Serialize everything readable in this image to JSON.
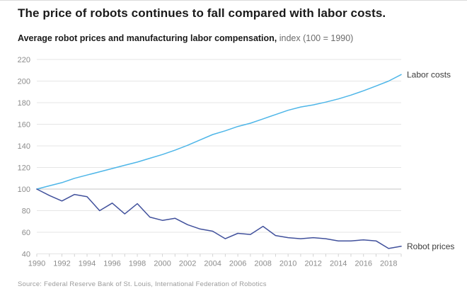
{
  "title": "The price of robots continues to fall compared with labor costs.",
  "subtitle": {
    "bold": "Average robot prices and manufacturing labor compensation,",
    "rest": " index (100 = 1990)"
  },
  "source": "Source: Federal Reserve Bank of St. Louis, International Federation of Robotics",
  "colors": {
    "labor_line": "#4eb6e8",
    "robot_line": "#41519c",
    "grid": "#e5e5e5",
    "grid_emphasis": "#c4c4c4",
    "tick": "#d2d2d2",
    "axis_text": "#8c8c8c",
    "series_label_text": "#3c3c3c",
    "title_text": "#1a1a1a",
    "source_text": "#9b9b9b"
  },
  "chart_data": {
    "type": "line",
    "title": "Average robot prices and manufacturing labor compensation, index (100 = 1990)",
    "xlabel": "",
    "ylabel": "",
    "x": [
      1990,
      1991,
      1992,
      1993,
      1994,
      1995,
      1996,
      1997,
      1998,
      1999,
      2000,
      2001,
      2002,
      2003,
      2004,
      2005,
      2006,
      2007,
      2008,
      2009,
      2010,
      2011,
      2012,
      2013,
      2014,
      2015,
      2016,
      2017,
      2018,
      2019
    ],
    "series": [
      {
        "name": "Labor costs",
        "color": "#4eb6e8",
        "values": [
          100,
          103,
          106,
          110,
          113,
          116,
          119,
          122,
          125,
          128.5,
          132,
          136,
          140.5,
          145.5,
          150.5,
          154,
          158,
          161,
          165,
          169,
          173,
          176,
          178,
          180.5,
          183.5,
          187,
          191,
          195.5,
          200,
          206
        ]
      },
      {
        "name": "Robot prices",
        "color": "#41519c",
        "values": [
          100,
          94,
          89,
          95,
          93,
          80,
          87,
          77,
          86.5,
          74,
          71,
          73,
          67,
          63,
          61,
          54,
          59,
          58,
          65.5,
          57,
          55,
          54,
          55,
          54,
          52,
          52,
          53,
          52,
          45,
          47
        ]
      }
    ],
    "ylim": [
      40,
      220
    ],
    "ytick_step": 20,
    "ytick_labels": [
      "40",
      "60",
      "80",
      "100",
      "120",
      "140",
      "160",
      "180",
      "200",
      "220"
    ],
    "xtick_labels": [
      "1990",
      "1992",
      "1994",
      "1996",
      "1998",
      "2000",
      "2002",
      "2004",
      "2006",
      "2008",
      "2010",
      "2012",
      "2014",
      "2016",
      "2018"
    ],
    "grid": true,
    "legend_position": "end-of-line"
  }
}
